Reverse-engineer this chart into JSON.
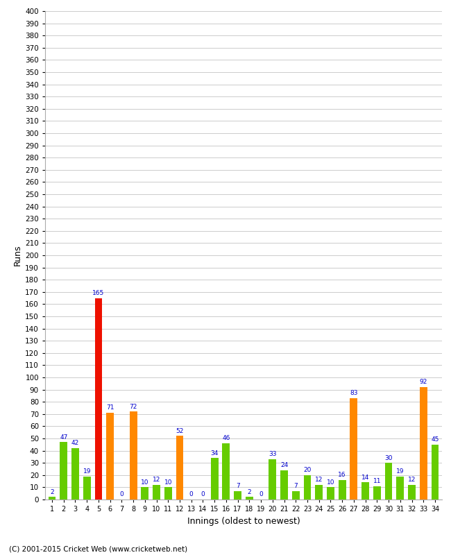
{
  "innings": [
    1,
    2,
    3,
    4,
    5,
    6,
    7,
    8,
    9,
    10,
    11,
    12,
    13,
    14,
    15,
    16,
    17,
    18,
    19,
    20,
    21,
    22,
    23,
    24,
    25,
    26,
    27,
    28,
    29,
    30,
    31,
    32,
    33,
    34
  ],
  "values": [
    2,
    47,
    42,
    19,
    165,
    71,
    0,
    72,
    10,
    12,
    10,
    52,
    0,
    0,
    34,
    46,
    7,
    2,
    0,
    33,
    24,
    7,
    20,
    12,
    10,
    16,
    83,
    14,
    11,
    30,
    19,
    12,
    92,
    45
  ],
  "colors": [
    "#66cc00",
    "#66cc00",
    "#66cc00",
    "#66cc00",
    "#ee1100",
    "#ff8800",
    "#66cc00",
    "#ff8800",
    "#66cc00",
    "#66cc00",
    "#66cc00",
    "#ff8800",
    "#66cc00",
    "#66cc00",
    "#66cc00",
    "#66cc00",
    "#66cc00",
    "#66cc00",
    "#66cc00",
    "#66cc00",
    "#66cc00",
    "#66cc00",
    "#66cc00",
    "#66cc00",
    "#66cc00",
    "#66cc00",
    "#ff8800",
    "#66cc00",
    "#66cc00",
    "#66cc00",
    "#66cc00",
    "#66cc00",
    "#ff8800",
    "#66cc00"
  ],
  "ylabel": "Runs",
  "xlabel": "Innings (oldest to newest)",
  "ylim_max": 400,
  "ytick_step": 10,
  "footer": "(C) 2001-2015 Cricket Web (www.cricketweb.net)",
  "bg_color": "#ffffff",
  "grid_color": "#cccccc",
  "label_color": "#0000cc",
  "bar_width": 0.65
}
